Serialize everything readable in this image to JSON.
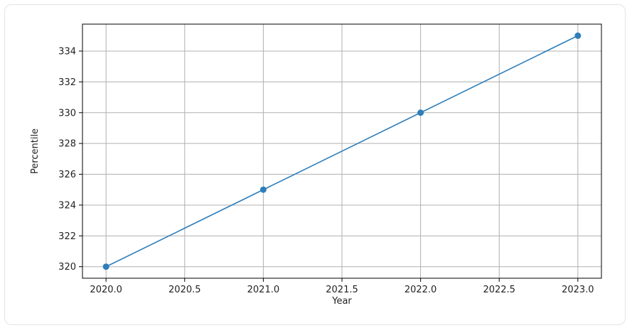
{
  "chart_data": {
    "type": "line",
    "title": "",
    "xlabel": "Year",
    "ylabel": "Percentile",
    "x": [
      2020,
      2021,
      2022,
      2023
    ],
    "series": [
      {
        "values": [
          320,
          325,
          330,
          335
        ],
        "color": "#2e7ebb",
        "marker": "circle"
      }
    ],
    "xlim": [
      2019.85,
      2023.15
    ],
    "ylim": [
      319.25,
      335.75
    ],
    "xticks": [
      "2020.0",
      "2020.5",
      "2021.0",
      "2021.5",
      "2022.0",
      "2022.5",
      "2023.0"
    ],
    "yticks": [
      "320",
      "322",
      "324",
      "326",
      "328",
      "330",
      "332",
      "334"
    ],
    "grid": true,
    "legend": "none"
  }
}
